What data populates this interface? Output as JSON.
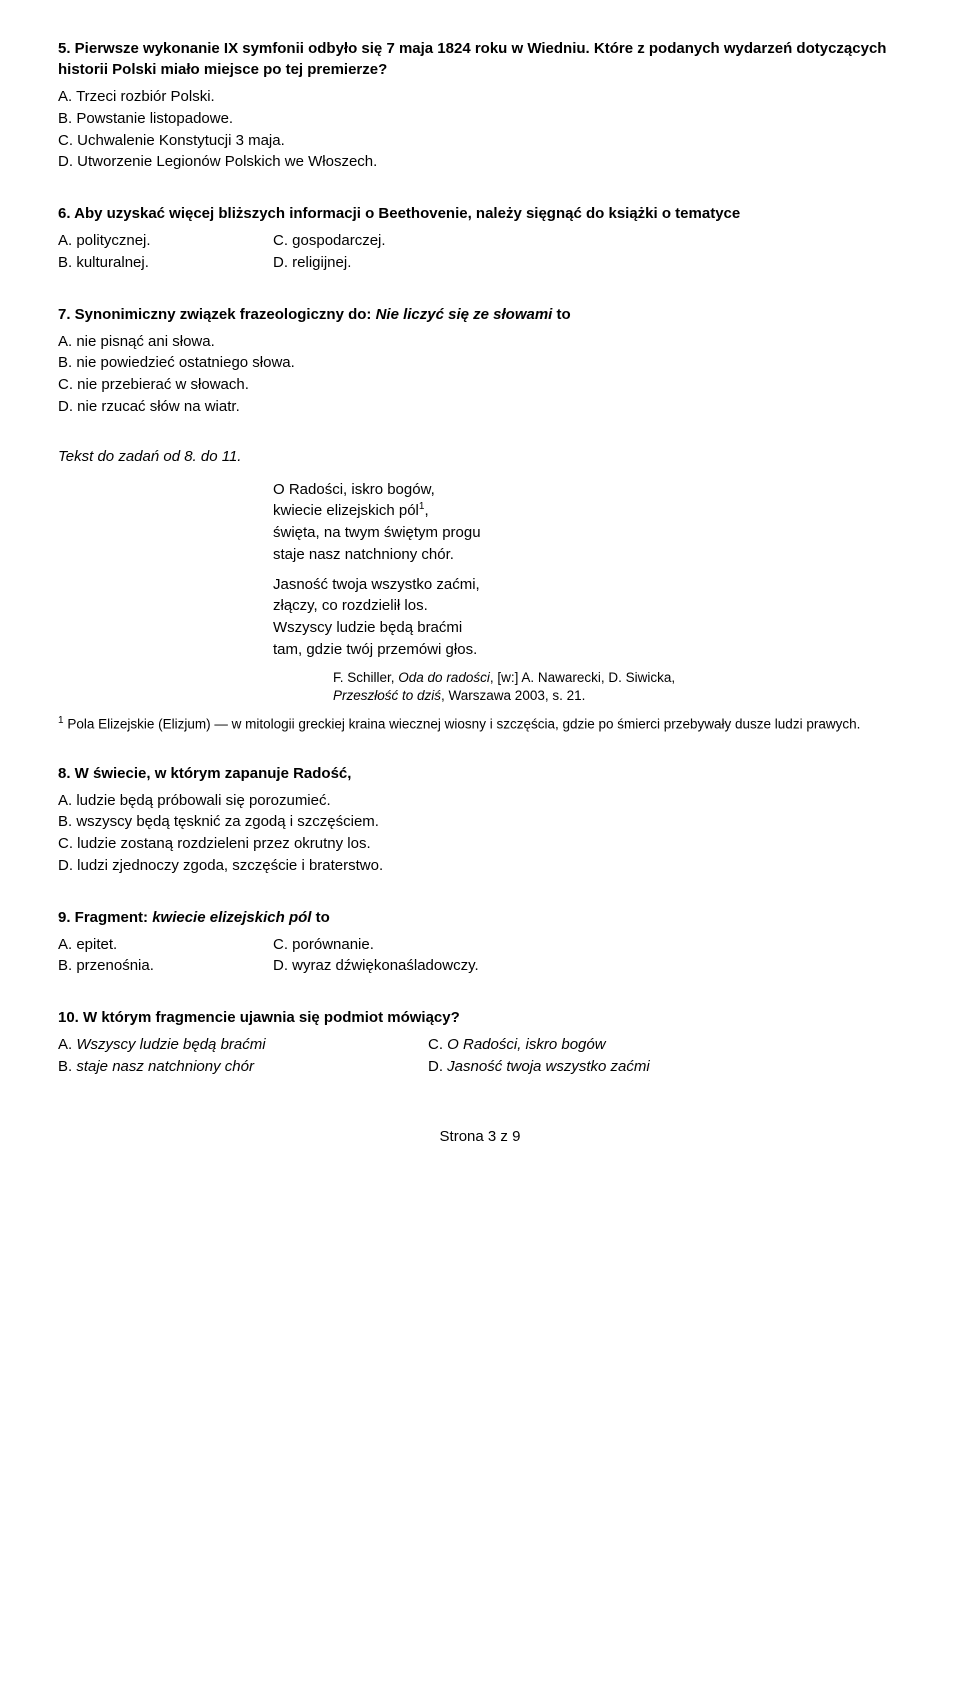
{
  "q5": {
    "title": "5. Pierwsze wykonanie IX symfonii odbyło się 7 maja 1824 roku w Wiedniu. Które z podanych wydarzeń dotyczących historii Polski miało miejsce po tej premierze?",
    "a": "A. Trzeci rozbiór Polski.",
    "b": "B. Powstanie listopadowe.",
    "c": "C. Uchwalenie Konstytucji 3 maja.",
    "d": "D. Utworzenie Legionów Polskich we Włoszech."
  },
  "q6": {
    "title": "6. Aby uzyskać więcej bliższych informacji o Beethovenie, należy sięgnąć do książki o tematyce",
    "a": "A. politycznej.",
    "b": "B. kulturalnej.",
    "c": "C. gospodarczej.",
    "d": "D. religijnej."
  },
  "q7": {
    "title_prefix": "7. Synonimiczny związek frazeologiczny do: ",
    "title_italic": "Nie liczyć się ze słowami",
    "title_suffix": " to",
    "a": "A. nie pisnąć ani słowa.",
    "b": "B. nie powiedzieć ostatniego słowa.",
    "c": "C. nie przebierać w słowach.",
    "d": "D. nie rzucać słów na wiatr."
  },
  "instruction": "Tekst do zadań od 8. do 11.",
  "poem": {
    "s1l1": "O Radości, iskro bogów,",
    "s1l2_prefix": "kwiecie elizejskich pól",
    "s1l2_sup": "1",
    "s1l2_suffix": ",",
    "s1l3": "święta, na twym świętym progu",
    "s1l4": "staje nasz natchniony chór.",
    "s2l1": "Jasność twoja wszystko zaćmi,",
    "s2l2": "złączy, co rozdzielił los.",
    "s2l3": "Wszyscy ludzie będą braćmi",
    "s2l4": "tam, gdzie twój przemówi głos."
  },
  "citation": {
    "line1_prefix": "F. Schiller, ",
    "line1_italic1": "Oda do radości",
    "line1_mid": ", [w:] A. Nawarecki, D. Siwicka,",
    "line2_italic": "Przeszłość to dziś",
    "line2_suffix": ", Warszawa 2003, s. 21."
  },
  "footnote": {
    "sup": "1",
    "text": " Pola Elizejskie (Elizjum) — w mitologii greckiej kraina wiecznej wiosny i szczęścia, gdzie po śmierci przebywały dusze ludzi prawych."
  },
  "q8": {
    "title": "8. W świecie, w którym zapanuje Radość,",
    "a": "A. ludzie będą próbowali się porozumieć.",
    "b": "B. wszyscy będą tęsknić za zgodą i szczęściem.",
    "c": "C. ludzie zostaną rozdzieleni przez okrutny los.",
    "d": "D. ludzi zjednoczy zgoda, szczęście i braterstwo."
  },
  "q9": {
    "title_prefix": "9. Fragment: ",
    "title_italic": "kwiecie elizejskich pól",
    "title_suffix": " to",
    "a": "A. epitet.",
    "b": "B. przenośnia.",
    "c": "C. porównanie.",
    "d": "D. wyraz dźwiękonaśladowczy."
  },
  "q10": {
    "title": "10. W którym fragmencie ujawnia się podmiot mówiący?",
    "a_prefix": "A. ",
    "a_italic": "Wszyscy ludzie będą braćmi",
    "b_prefix": "B. ",
    "b_italic": "staje nasz natchniony chór",
    "c_prefix": "C. ",
    "c_italic": "O Radości, iskro bogów",
    "d_prefix": "D. ",
    "d_italic": "Jasność twoja wszystko zaćmi"
  },
  "pageNumber": "Strona 3 z 9"
}
